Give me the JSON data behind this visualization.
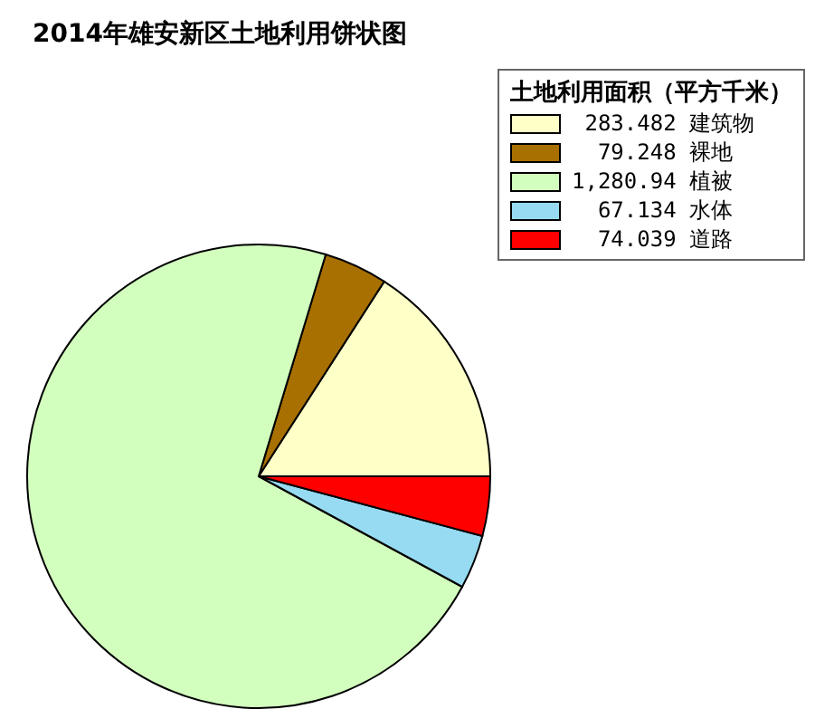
{
  "chart_data": {
    "type": "pie",
    "title": "2014年雄安新区土地利用饼状图",
    "legend_title": "土地利用面积（平方千米）",
    "legend": "top right",
    "categories": [
      "建筑物",
      "裸地",
      "植被",
      "水体",
      "道路"
    ],
    "values": [
      283.482,
      79.248,
      1280.94,
      67.134,
      74.039
    ],
    "value_labels": [
      "283.482",
      "79.248",
      "1,280.94",
      "67.134",
      "74.039"
    ],
    "colors": [
      "#ffffc8",
      "#a87000",
      "#d3ffbe",
      "#97dbf2",
      "#ff0000"
    ]
  }
}
